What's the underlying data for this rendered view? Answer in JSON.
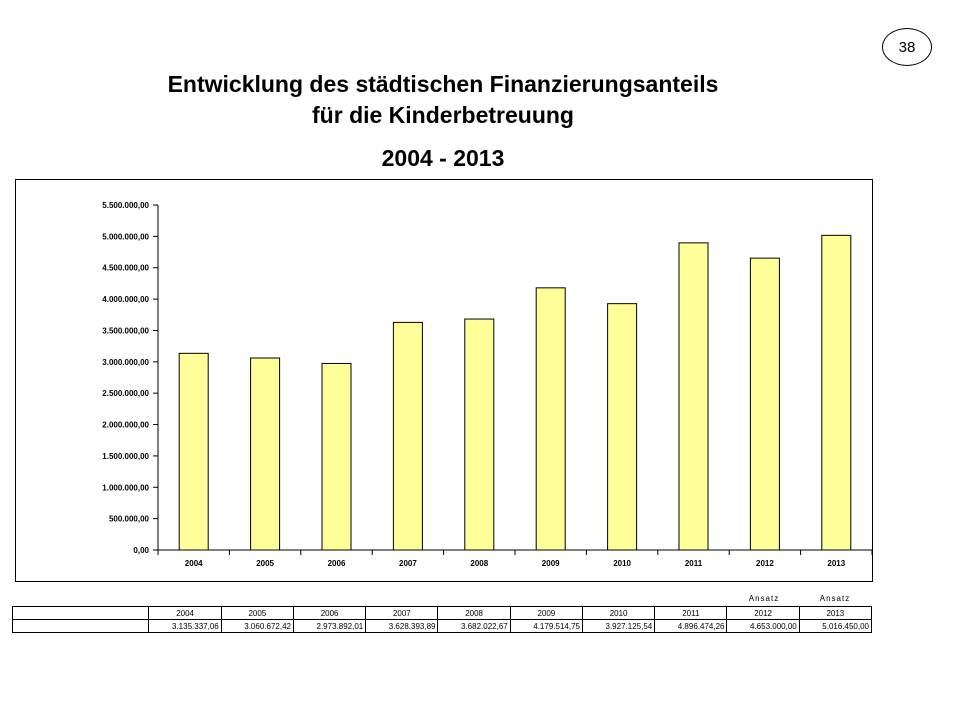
{
  "page_number": "38",
  "title": {
    "line1": "Entwicklung des städtischen Finanzierungsanteils",
    "line2": "für die Kinderbetreuung",
    "line3": "2004 - 2013"
  },
  "chart_data": {
    "type": "bar",
    "categories": [
      "2004",
      "2005",
      "2006",
      "2007",
      "2008",
      "2009",
      "2010",
      "2011",
      "2012",
      "2013"
    ],
    "values": [
      3135337.06,
      3060672.42,
      2973892.01,
      3628393.89,
      3682022.67,
      4179514.75,
      3927125.54,
      4896474.26,
      4653000.0,
      5016450.0
    ],
    "ylim": [
      0,
      5500000
    ],
    "yticks": [
      "0,00",
      "500.000,00",
      "1.000.000,00",
      "1.500.000,00",
      "2.000.000,00",
      "2.500.000,00",
      "3.000.000,00",
      "3.500.000,00",
      "4.000.000,00",
      "4.500.000,00",
      "5.000.000,00",
      "5.500.000,00"
    ],
    "ytick_values": [
      0,
      500000,
      1000000,
      1500000,
      2000000,
      2500000,
      3000000,
      3500000,
      4000000,
      4500000,
      5000000,
      5500000
    ],
    "bar_color": "#FFFF99",
    "grid": false,
    "legend": false
  },
  "table": {
    "ansatz_labels": [
      "Ansatz",
      "Ansatz"
    ],
    "years": [
      "2004",
      "2005",
      "2006",
      "2007",
      "2008",
      "2009",
      "2010",
      "2011",
      "2012",
      "2013"
    ],
    "values": [
      "3.135.337,06",
      "3.060.672,42",
      "2.973.892,01",
      "3.628.393,89",
      "3.682.022,67",
      "4.179.514,75",
      "3.927.125,54",
      "4.896.474,26",
      "4.653.000,00",
      "5.016.450,00"
    ]
  }
}
